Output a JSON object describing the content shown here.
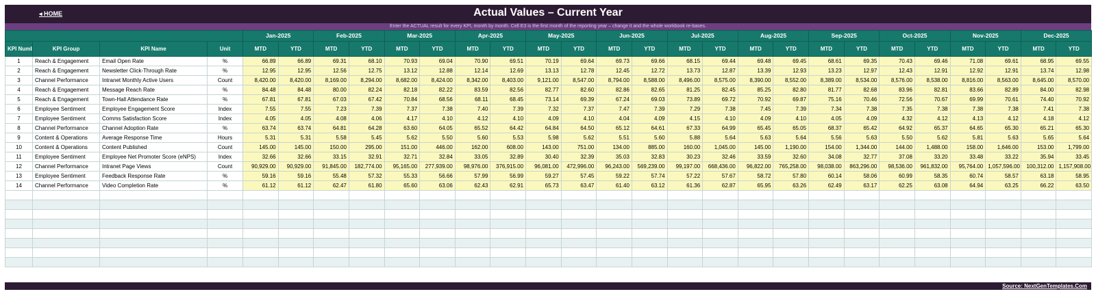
{
  "header": {
    "home_label": "◂ HOME",
    "title": "Actual Values  –  Current Year",
    "subtitle": "Enter the ACTUAL result for every KPI, month by month. Cell E3 is the first month of the reporting year – change it and the whole workbook re-bases."
  },
  "columns": {
    "kpi_number": "KPI Number",
    "kpi_group": "KPI Group",
    "kpi_name": "KPI Name",
    "unit": "Unit",
    "mtd": "MTD",
    "ytd": "YTD"
  },
  "months": [
    "Jan-2025",
    "Feb-2025",
    "Mar-2025",
    "Apr-2025",
    "May-2025",
    "Jun-2025",
    "Jul-2025",
    "Aug-2025",
    "Sep-2025",
    "Oct-2025",
    "Nov-2025",
    "Dec-2025"
  ],
  "rows": [
    {
      "num": "1",
      "group": "Reach & Engagement",
      "name": "Email Open Rate",
      "unit": "%",
      "values": [
        "66.89",
        "66.89",
        "69.31",
        "68.10",
        "70.93",
        "69.04",
        "70.90",
        "69.51",
        "70.19",
        "69.64",
        "69.73",
        "69.66",
        "68.15",
        "69.44",
        "69.48",
        "69.45",
        "68.61",
        "69.35",
        "70.43",
        "69.46",
        "71.08",
        "69.61",
        "68.95",
        "69.55"
      ]
    },
    {
      "num": "2",
      "group": "Reach & Engagement",
      "name": "Newsletter Click-Through Rate",
      "unit": "%",
      "values": [
        "12.95",
        "12.95",
        "12.56",
        "12.75",
        "13.12",
        "12.88",
        "12.14",
        "12.69",
        "13.13",
        "12.78",
        "12.45",
        "12.72",
        "13.73",
        "12.87",
        "13.39",
        "12.93",
        "13.23",
        "12.97",
        "12.43",
        "12.91",
        "12.92",
        "12.91",
        "13.74",
        "12.98"
      ]
    },
    {
      "num": "3",
      "group": "Channel Performance",
      "name": "Intranet Monthly Active Users",
      "unit": "Count",
      "values": [
        "8,420.00",
        "8,420.00",
        "8,169.00",
        "8,294.00",
        "8,682.00",
        "8,424.00",
        "8,342.00",
        "8,403.00",
        "9,121.00",
        "8,547.00",
        "8,794.00",
        "8,588.00",
        "8,496.00",
        "8,575.00",
        "8,390.00",
        "8,552.00",
        "8,389.00",
        "8,534.00",
        "8,576.00",
        "8,538.00",
        "8,816.00",
        "8,563.00",
        "8,645.00",
        "8,570.00"
      ]
    },
    {
      "num": "4",
      "group": "Reach & Engagement",
      "name": "Message Reach Rate",
      "unit": "%",
      "values": [
        "84.48",
        "84.48",
        "80.00",
        "82.24",
        "82.18",
        "82.22",
        "83.59",
        "82.56",
        "82.77",
        "82.60",
        "82.86",
        "82.65",
        "81.25",
        "82.45",
        "85.25",
        "82.80",
        "81.77",
        "82.68",
        "83.96",
        "82.81",
        "83.66",
        "82.89",
        "84.00",
        "82.98"
      ]
    },
    {
      "num": "5",
      "group": "Reach & Engagement",
      "name": "Town-Hall Attendance Rate",
      "unit": "%",
      "values": [
        "67.81",
        "67.81",
        "67.03",
        "67.42",
        "70.84",
        "68.56",
        "68.11",
        "68.45",
        "73.14",
        "69.39",
        "67.24",
        "69.03",
        "73.89",
        "69.72",
        "70.92",
        "69.87",
        "75.16",
        "70.46",
        "72.56",
        "70.67",
        "69.99",
        "70.61",
        "74.40",
        "70.92"
      ]
    },
    {
      "num": "6",
      "group": "Employee Sentiment",
      "name": "Employee Engagement Score",
      "unit": "Index",
      "values": [
        "7.55",
        "7.55",
        "7.23",
        "7.39",
        "7.37",
        "7.38",
        "7.40",
        "7.39",
        "7.32",
        "7.37",
        "7.47",
        "7.39",
        "7.29",
        "7.38",
        "7.45",
        "7.39",
        "7.34",
        "7.38",
        "7.35",
        "7.38",
        "7.38",
        "7.38",
        "7.41",
        "7.38"
      ]
    },
    {
      "num": "7",
      "group": "Employee Sentiment",
      "name": "Comms Satisfaction Score",
      "unit": "Index",
      "values": [
        "4.05",
        "4.05",
        "4.08",
        "4.06",
        "4.17",
        "4.10",
        "4.12",
        "4.10",
        "4.09",
        "4.10",
        "4.04",
        "4.09",
        "4.15",
        "4.10",
        "4.09",
        "4.10",
        "4.05",
        "4.09",
        "4.32",
        "4.12",
        "4.13",
        "4.12",
        "4.18",
        "4.12"
      ]
    },
    {
      "num": "8",
      "group": "Channel Performance",
      "name": "Channel Adoption Rate",
      "unit": "%",
      "values": [
        "63.74",
        "63.74",
        "64.81",
        "64.28",
        "63.60",
        "64.05",
        "65.52",
        "64.42",
        "64.84",
        "64.50",
        "65.12",
        "64.61",
        "67.33",
        "64.99",
        "65.45",
        "65.05",
        "68.37",
        "65.42",
        "64.92",
        "65.37",
        "64.65",
        "65.30",
        "65.21",
        "65.30"
      ]
    },
    {
      "num": "9",
      "group": "Content & Operations",
      "name": "Average Response Time",
      "unit": "Hours",
      "values": [
        "5.31",
        "5.31",
        "5.58",
        "5.45",
        "5.62",
        "5.50",
        "5.60",
        "5.53",
        "5.98",
        "5.62",
        "5.51",
        "5.60",
        "5.88",
        "5.64",
        "5.63",
        "5.64",
        "5.56",
        "5.63",
        "5.50",
        "5.62",
        "5.81",
        "5.63",
        "5.65",
        "5.64"
      ]
    },
    {
      "num": "10",
      "group": "Content & Operations",
      "name": "Content Published",
      "unit": "Count",
      "values": [
        "145.00",
        "145.00",
        "150.00",
        "295.00",
        "151.00",
        "446.00",
        "162.00",
        "608.00",
        "143.00",
        "751.00",
        "134.00",
        "885.00",
        "160.00",
        "1,045.00",
        "145.00",
        "1,190.00",
        "154.00",
        "1,344.00",
        "144.00",
        "1,488.00",
        "158.00",
        "1,646.00",
        "153.00",
        "1,799.00"
      ]
    },
    {
      "num": "11",
      "group": "Employee Sentiment",
      "name": "Employee Net Promoter Score (eNPS)",
      "unit": "Index",
      "values": [
        "32.66",
        "32.66",
        "33.15",
        "32.91",
        "32.71",
        "32.84",
        "33.05",
        "32.89",
        "30.40",
        "32.39",
        "35.03",
        "32.83",
        "30.23",
        "32.46",
        "33.59",
        "32.60",
        "34.08",
        "32.77",
        "37.08",
        "33.20",
        "33.48",
        "33.22",
        "35.94",
        "33.45"
      ]
    },
    {
      "num": "12",
      "group": "Channel Performance",
      "name": "Intranet Page Views",
      "unit": "Count",
      "values": [
        "90,929.00",
        "90,929.00",
        "91,845.00",
        "182,774.00",
        "95,165.00",
        "277,939.00",
        "98,976.00",
        "376,915.00",
        "96,081.00",
        "472,996.00",
        "96,243.00",
        "569,239.00",
        "99,197.00",
        "668,436.00",
        "96,822.00",
        "765,258.00",
        "98,038.00",
        "863,296.00",
        "98,536.00",
        "961,832.00",
        "95,764.00",
        "1,057,596.00",
        "100,312.00",
        "1,157,908.00"
      ]
    },
    {
      "num": "13",
      "group": "Employee Sentiment",
      "name": "Feedback Response Rate",
      "unit": "%",
      "values": [
        "59.16",
        "59.16",
        "55.48",
        "57.32",
        "55.33",
        "56.66",
        "57.99",
        "56.99",
        "59.27",
        "57.45",
        "59.22",
        "57.74",
        "57.22",
        "57.67",
        "58.72",
        "57.80",
        "60.14",
        "58.06",
        "60.99",
        "58.35",
        "60.74",
        "58.57",
        "63.18",
        "58.95"
      ]
    },
    {
      "num": "14",
      "group": "Channel Performance",
      "name": "Video Completion Rate",
      "unit": "%",
      "values": [
        "61.12",
        "61.12",
        "62.47",
        "61.80",
        "65.60",
        "63.06",
        "62.43",
        "62.91",
        "65.73",
        "63.47",
        "61.40",
        "63.12",
        "61.36",
        "62.87",
        "65.95",
        "63.26",
        "62.49",
        "63.17",
        "62.25",
        "63.08",
        "64.94",
        "63.25",
        "66.22",
        "63.50"
      ]
    }
  ],
  "empty_row_count": 8,
  "footer": {
    "source_label": "Source: NextGenTemplates.Com"
  }
}
